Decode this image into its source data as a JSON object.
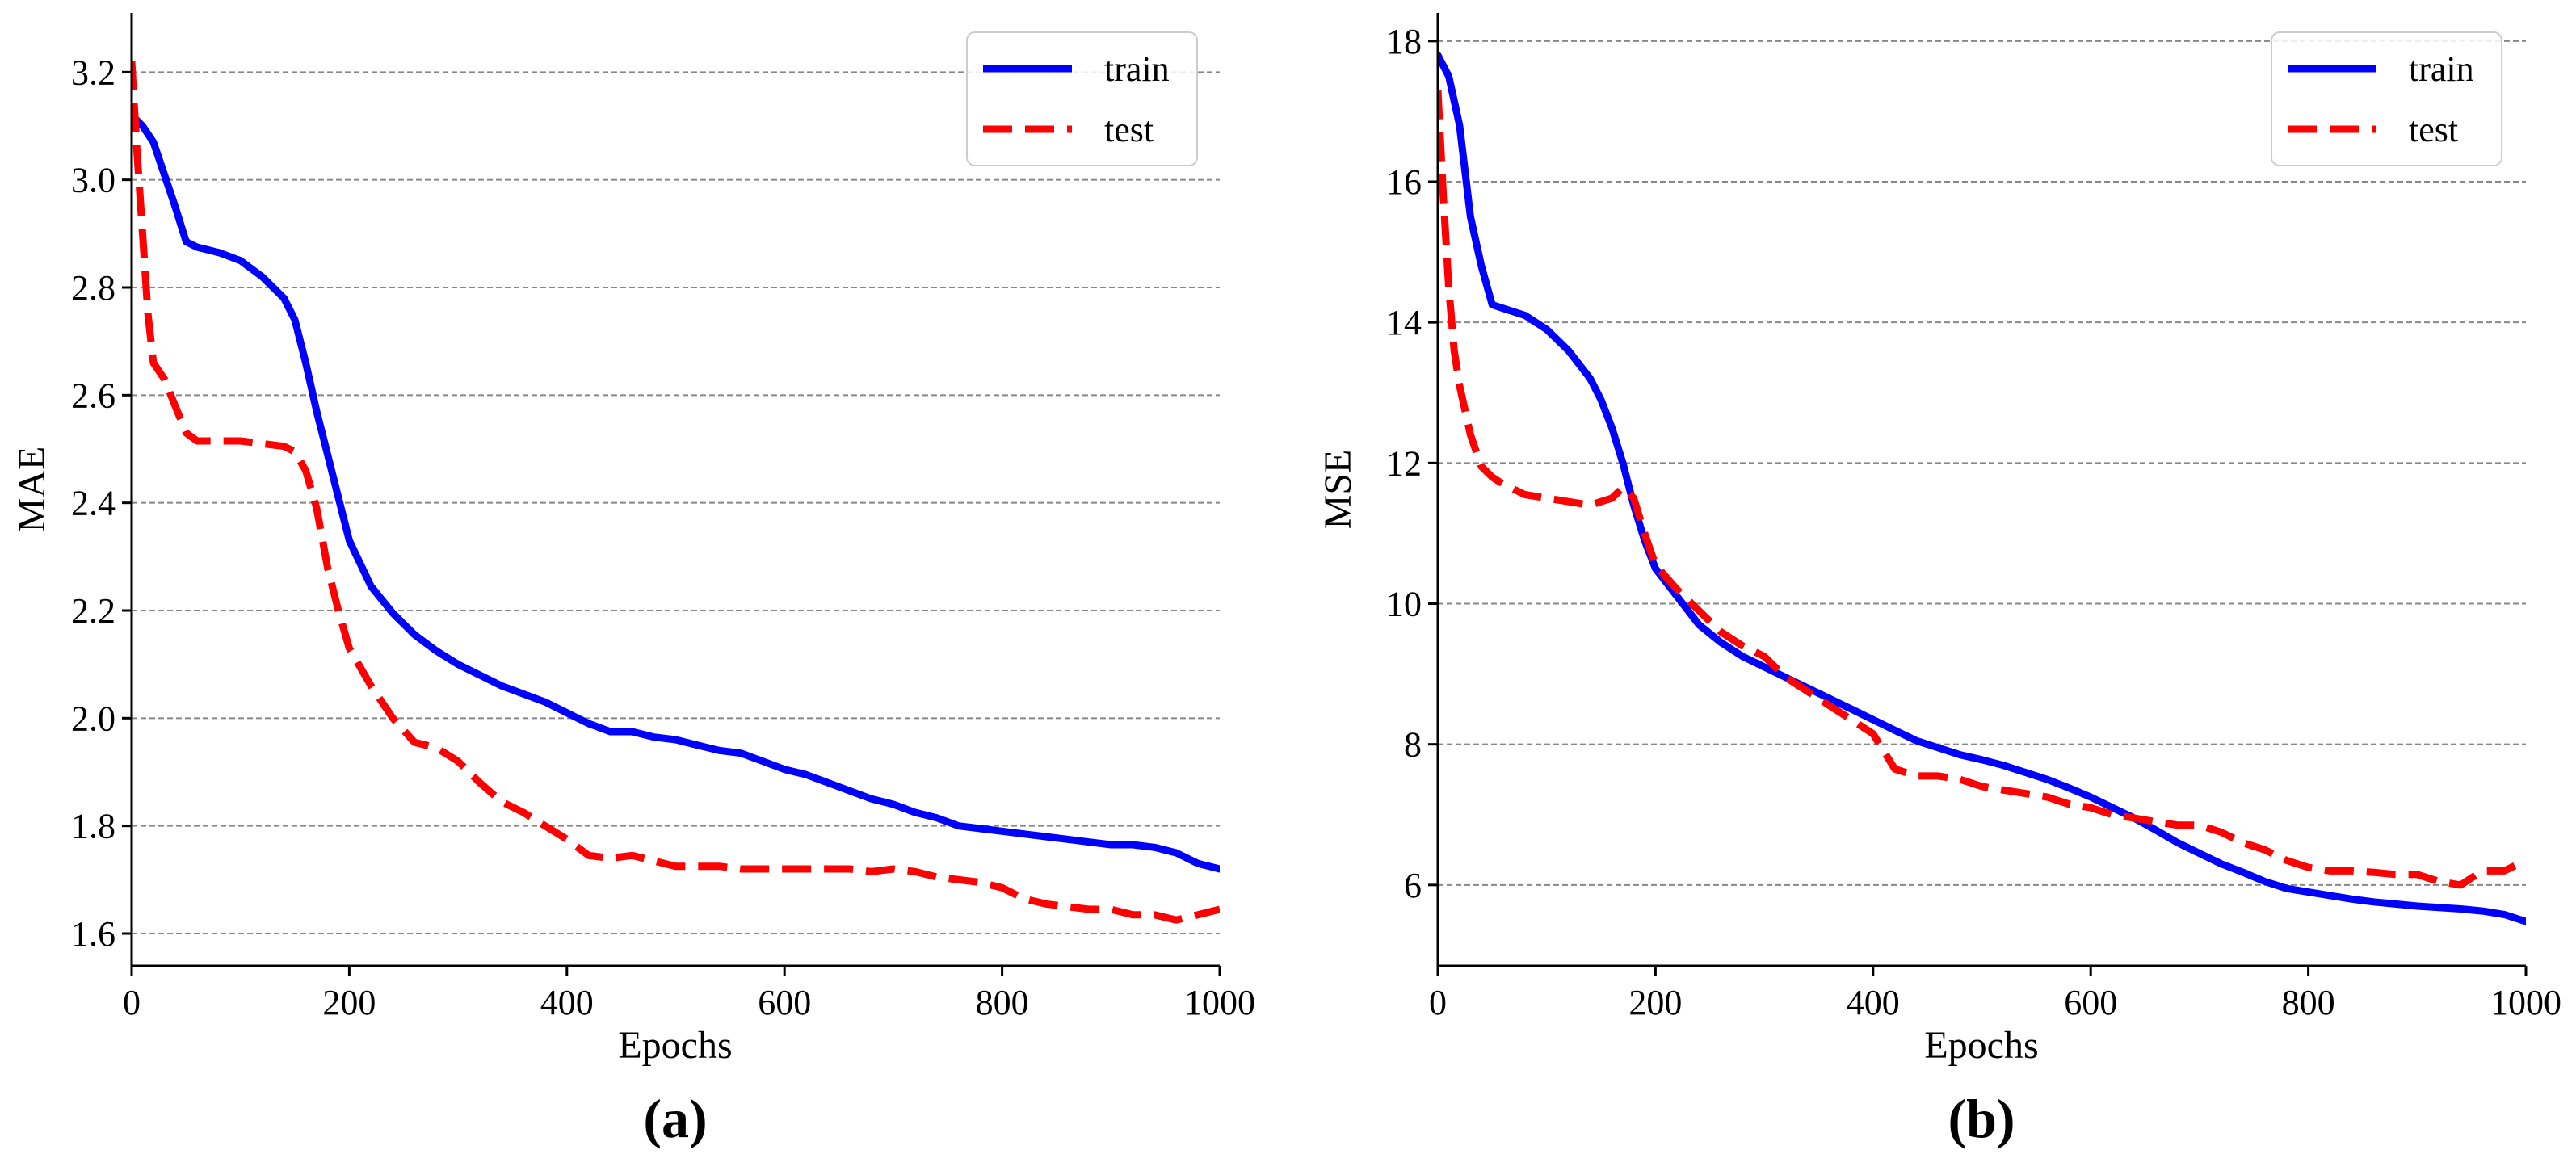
{
  "colors": {
    "train": "#0000ff",
    "test": "#ff0000",
    "grid": "#888888",
    "axis": "#000000"
  },
  "chart_data": [
    {
      "type": "line",
      "panel_label": "(a)",
      "xlabel": "Epochs",
      "ylabel": "MAE",
      "xlim": [
        0,
        1000
      ],
      "ylim": [
        1.54,
        3.31
      ],
      "xticks": [
        0,
        200,
        400,
        600,
        800,
        1000
      ],
      "xtick_labels": [
        "0",
        "200",
        "400",
        "600",
        "800",
        "1000"
      ],
      "yticks": [
        1.6,
        1.8,
        2.0,
        2.2,
        2.4,
        2.6,
        2.8,
        3.0,
        3.2
      ],
      "ytick_labels": [
        "1.6",
        "1.8",
        "2.0",
        "2.2",
        "2.4",
        "2.6",
        "2.8",
        "3.0",
        "3.2"
      ],
      "grid": "y",
      "legend_position": "top-right",
      "series": [
        {
          "name": "train",
          "style": "solid",
          "x": [
            0,
            10,
            20,
            30,
            40,
            50,
            60,
            80,
            100,
            120,
            140,
            150,
            160,
            170,
            180,
            190,
            200,
            220,
            240,
            260,
            280,
            300,
            320,
            340,
            360,
            380,
            400,
            420,
            440,
            460,
            480,
            500,
            520,
            540,
            560,
            580,
            600,
            620,
            640,
            660,
            680,
            700,
            720,
            740,
            760,
            780,
            800,
            820,
            840,
            860,
            880,
            900,
            920,
            940,
            960,
            980,
            1000
          ],
          "values": [
            3.12,
            3.1,
            3.07,
            3.01,
            2.95,
            2.885,
            2.875,
            2.865,
            2.85,
            2.82,
            2.78,
            2.74,
            2.66,
            2.57,
            2.49,
            2.41,
            2.33,
            2.245,
            2.195,
            2.155,
            2.125,
            2.1,
            2.08,
            2.06,
            2.045,
            2.03,
            2.01,
            1.99,
            1.975,
            1.975,
            1.965,
            1.96,
            1.95,
            1.94,
            1.935,
            1.92,
            1.905,
            1.895,
            1.88,
            1.865,
            1.85,
            1.84,
            1.825,
            1.815,
            1.8,
            1.795,
            1.79,
            1.785,
            1.78,
            1.775,
            1.77,
            1.765,
            1.765,
            1.76,
            1.75,
            1.73,
            1.72
          ]
        },
        {
          "name": "test",
          "style": "dashed",
          "x": [
            0,
            5,
            10,
            15,
            20,
            30,
            40,
            50,
            60,
            80,
            100,
            120,
            140,
            150,
            160,
            170,
            180,
            190,
            200,
            220,
            240,
            260,
            280,
            300,
            320,
            340,
            360,
            380,
            400,
            420,
            440,
            460,
            480,
            500,
            520,
            540,
            560,
            580,
            600,
            620,
            640,
            660,
            680,
            700,
            720,
            740,
            760,
            780,
            800,
            820,
            840,
            860,
            880,
            900,
            920,
            940,
            960,
            980,
            1000
          ],
          "values": [
            3.22,
            3.05,
            2.9,
            2.75,
            2.66,
            2.63,
            2.58,
            2.53,
            2.515,
            2.515,
            2.515,
            2.51,
            2.505,
            2.495,
            2.46,
            2.39,
            2.28,
            2.2,
            2.13,
            2.06,
            2.0,
            1.955,
            1.945,
            1.92,
            1.88,
            1.845,
            1.825,
            1.8,
            1.775,
            1.745,
            1.74,
            1.745,
            1.735,
            1.725,
            1.725,
            1.725,
            1.72,
            1.72,
            1.72,
            1.72,
            1.72,
            1.72,
            1.715,
            1.72,
            1.715,
            1.705,
            1.7,
            1.695,
            1.685,
            1.665,
            1.655,
            1.65,
            1.645,
            1.645,
            1.635,
            1.635,
            1.625,
            1.635,
            1.645
          ]
        }
      ]
    },
    {
      "type": "line",
      "panel_label": "(b)",
      "xlabel": "Epochs",
      "ylabel": "MSE",
      "xlim": [
        0,
        1000
      ],
      "ylim": [
        4.85,
        18.4
      ],
      "xticks": [
        0,
        200,
        400,
        600,
        800,
        1000
      ],
      "xtick_labels": [
        "0",
        "200",
        "400",
        "600",
        "800",
        "1000"
      ],
      "yticks": [
        6,
        8,
        10,
        12,
        14,
        16,
        18
      ],
      "ytick_labels": [
        "6",
        "8",
        "10",
        "12",
        "14",
        "16",
        "18"
      ],
      "grid": "y",
      "legend_position": "top-right",
      "series": [
        {
          "name": "train",
          "style": "solid",
          "x": [
            0,
            10,
            20,
            30,
            40,
            50,
            60,
            80,
            100,
            120,
            140,
            150,
            160,
            170,
            180,
            190,
            200,
            220,
            240,
            260,
            280,
            300,
            320,
            340,
            360,
            380,
            400,
            420,
            440,
            460,
            480,
            500,
            520,
            540,
            560,
            580,
            600,
            620,
            640,
            660,
            680,
            700,
            720,
            740,
            760,
            780,
            800,
            820,
            840,
            860,
            880,
            900,
            920,
            940,
            960,
            980,
            1000
          ],
          "values": [
            17.8,
            17.5,
            16.8,
            15.5,
            14.8,
            14.25,
            14.2,
            14.1,
            13.9,
            13.6,
            13.2,
            12.9,
            12.5,
            12.0,
            11.4,
            10.9,
            10.5,
            10.1,
            9.7,
            9.45,
            9.25,
            9.1,
            8.95,
            8.8,
            8.65,
            8.5,
            8.35,
            8.2,
            8.05,
            7.95,
            7.85,
            7.78,
            7.7,
            7.6,
            7.5,
            7.38,
            7.25,
            7.1,
            6.95,
            6.78,
            6.6,
            6.45,
            6.3,
            6.18,
            6.05,
            5.95,
            5.9,
            5.85,
            5.8,
            5.76,
            5.73,
            5.7,
            5.68,
            5.66,
            5.63,
            5.58,
            5.48
          ]
        },
        {
          "name": "test",
          "style": "dashed",
          "x": [
            0,
            5,
            10,
            15,
            20,
            30,
            40,
            50,
            60,
            80,
            100,
            120,
            140,
            150,
            160,
            170,
            180,
            190,
            200,
            220,
            240,
            260,
            280,
            300,
            320,
            340,
            360,
            380,
            400,
            420,
            440,
            460,
            480,
            500,
            520,
            540,
            560,
            580,
            600,
            620,
            640,
            660,
            680,
            700,
            720,
            740,
            760,
            780,
            800,
            820,
            840,
            860,
            880,
            900,
            920,
            940,
            960,
            980,
            1000
          ],
          "values": [
            17.3,
            15.8,
            14.5,
            13.6,
            13.1,
            12.4,
            11.95,
            11.8,
            11.7,
            11.55,
            11.5,
            11.45,
            11.4,
            11.45,
            11.5,
            11.65,
            11.5,
            11.0,
            10.55,
            10.2,
            9.9,
            9.6,
            9.4,
            9.25,
            8.95,
            8.75,
            8.55,
            8.35,
            8.15,
            7.65,
            7.55,
            7.55,
            7.5,
            7.4,
            7.35,
            7.3,
            7.25,
            7.15,
            7.1,
            7.0,
            6.95,
            6.9,
            6.85,
            6.85,
            6.75,
            6.6,
            6.5,
            6.35,
            6.25,
            6.2,
            6.2,
            6.18,
            6.15,
            6.15,
            6.05,
            6.0,
            6.2,
            6.2,
            6.35
          ]
        }
      ]
    }
  ]
}
